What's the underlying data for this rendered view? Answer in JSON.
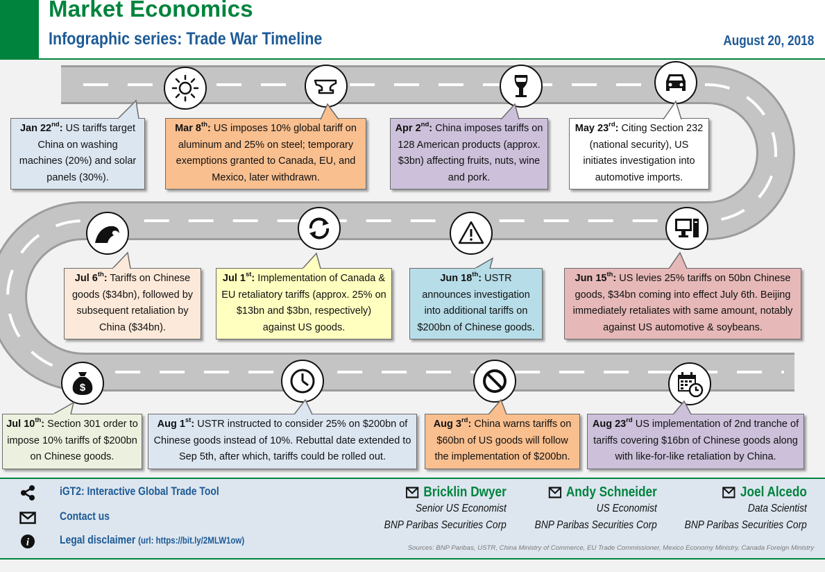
{
  "header": {
    "brand": "Market Economics",
    "subtitle": "Infographic series: Trade War Timeline",
    "date": "August 20, 2018"
  },
  "events": [
    {
      "date": "Jan 22",
      "suffix": "nd",
      "text": "US tariffs target China on washing machines (20%) and solar panels (30%).",
      "icon": "sun-icon",
      "color": "#dce6f1"
    },
    {
      "date": "Mar 8",
      "suffix": "th",
      "text": "US imposes 10% global tariff on aluminum and 25% on steel; temporary exemptions granted to Canada, EU, and Mexico, later withdrawn.",
      "icon": "anvil-icon",
      "color": "#f9bf8f"
    },
    {
      "date": "Apr 2",
      "suffix": "nd",
      "text": "China imposes tariffs on 128 American products (approx. $3bn) affecting fruits, nuts, wine and pork.",
      "icon": "wine-glass-icon",
      "color": "#ccc0da"
    },
    {
      "date": "May 23",
      "suffix": "rd",
      "text": "Citing Section 232 (national security), US initiates investigation into automotive imports.",
      "icon": "car-icon",
      "color": "#ffffff"
    },
    {
      "date": "Jun 15",
      "suffix": "th",
      "text": "US levies 25% tariffs on 50bn Chinese goods, $34bn coming into effect July 6th. Beijing immediately retaliates with same amount, notably against US automotive & soybeans.",
      "icon": "computer-icon",
      "color": "#e6b9b8"
    },
    {
      "date": "Jun 18",
      "suffix": "th",
      "text": "USTR announces investigation into additional tariffs on $200bn of Chinese goods.",
      "icon": "warning-icon",
      "color": "#b7dde8"
    },
    {
      "date": "Jul 1",
      "suffix": "st",
      "text": "Implementation of Canada & EU retaliatory tariffs (approx. 25% on $13bn and $3bn, respectively) against US goods.",
      "icon": "cycle-icon",
      "color": "#ffffc0"
    },
    {
      "date": "Jul 6",
      "suffix": "th",
      "text": "Tariffs on Chinese goods ($34bn), followed by subsequent retaliation by China ($34bn).",
      "icon": "wave-icon",
      "color": "#fde9d9"
    },
    {
      "date": "Jul 10",
      "suffix": "th",
      "text": "Section 301 order to impose 10% tariffs of $200bn on Chinese goods.",
      "icon": "money-bag-icon",
      "color": "#ebf1de"
    },
    {
      "date": "Aug 1",
      "suffix": "st",
      "text": "USTR instructed to consider 25% on $200bn of Chinese goods instead of 10%. Rebuttal date extended to Sep 5th, after which, tariffs could be rolled out.",
      "icon": "clock-icon",
      "color": "#dce6f1"
    },
    {
      "date": "Aug 3",
      "suffix": "rd",
      "text": "China warns tariffs on $60bn of US goods will follow the implementation of $200bn.",
      "icon": "prohibited-icon",
      "color": "#f9bf8f"
    },
    {
      "date": "Aug 23",
      "suffix": "rd",
      "text": "US implementation of 2nd tranche of tariffs covering $16bn of Chinese goods along with like-for-like retaliation by China.",
      "icon": "calendar-icon",
      "color": "#ccc0da"
    }
  ],
  "footer": {
    "links": [
      {
        "label": "iGT2: Interactive Global Trade Tool",
        "icon": "share-icon"
      },
      {
        "label": "Contact us",
        "icon": "mail-icon"
      },
      {
        "label": "Legal disclaimer",
        "note": "(url: https://bit.ly/2MLW1ow)",
        "icon": "info-icon"
      }
    ],
    "people": [
      {
        "name": "Bricklin Dwyer",
        "role": "Senior US Economist",
        "org": "BNP Paribas Securities Corp"
      },
      {
        "name": "Andy Schneider",
        "role": "US Economist",
        "org": "BNP Paribas Securities Corp"
      },
      {
        "name": "Joel Alcedo",
        "role": "Data Scientist",
        "org": "BNP Paribas Securities Corp"
      }
    ],
    "sources": "Sources: BNP Paribas, USTR, China Ministry of Commerce, EU Trade Commissioner, Mexico Economy Ministry, Canada Foreign Ministry"
  }
}
